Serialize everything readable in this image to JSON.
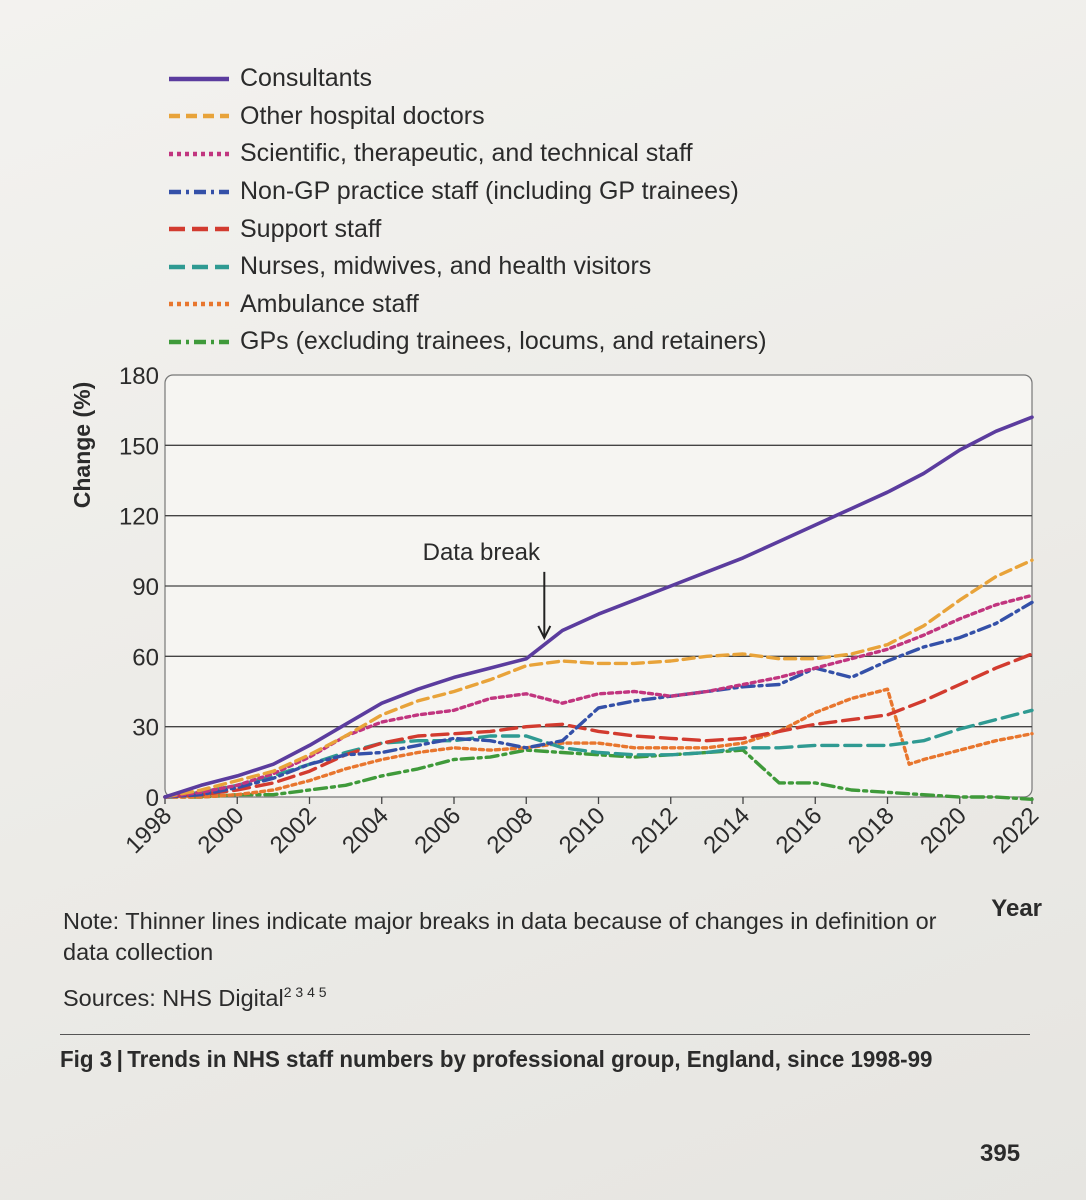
{
  "legend": [
    {
      "label": "Consultants",
      "color": "#5b3c9e",
      "dash": "solid"
    },
    {
      "label": "Other hospital doctors",
      "color": "#e8a33a",
      "dash": "dash"
    },
    {
      "label": "Scientific, therapeutic, and technical staff",
      "color": "#c1357f",
      "dash": "dot"
    },
    {
      "label": "Non-GP practice staff (including GP trainees)",
      "color": "#3450a8",
      "dash": "dashdot"
    },
    {
      "label": "Support staff",
      "color": "#d23b2f",
      "dash": "longdash"
    },
    {
      "label": "Nurses, midwives, and health visitors",
      "color": "#2f9a92",
      "dash": "longdash"
    },
    {
      "label": "Ambulance staff",
      "color": "#e8762e",
      "dash": "dot"
    },
    {
      "label": "GPs (excluding trainees, locums, and retainers)",
      "color": "#3f9a3a",
      "dash": "dashdot"
    }
  ],
  "chart_data": {
    "type": "line",
    "xlabel": "Year",
    "ylabel": "Change (%)",
    "xlim": [
      1998,
      2022
    ],
    "ylim": [
      0,
      180
    ],
    "x_ticks": [
      "1998",
      "2000",
      "2002",
      "2004",
      "2006",
      "2008",
      "2010",
      "2012",
      "2014",
      "2016",
      "2018",
      "2020",
      "2022"
    ],
    "y_ticks": [
      "0",
      "30",
      "60",
      "90",
      "120",
      "150",
      "180"
    ],
    "grid": "horizontal",
    "annotation": {
      "text": "Data break",
      "x": 2008.5,
      "y": 67
    },
    "series": [
      {
        "name": "Consultants",
        "color": "#5b3c9e",
        "dash": "solid",
        "points": [
          [
            1998,
            0
          ],
          [
            1999,
            5
          ],
          [
            2000,
            9
          ],
          [
            2001,
            14
          ],
          [
            2002,
            22
          ],
          [
            2003,
            31
          ],
          [
            2004,
            40
          ],
          [
            2005,
            46
          ],
          [
            2006,
            51
          ],
          [
            2007,
            55
          ],
          [
            2008,
            59
          ],
          [
            2009,
            71
          ],
          [
            2010,
            78
          ],
          [
            2011,
            84
          ],
          [
            2012,
            90
          ],
          [
            2013,
            96
          ],
          [
            2014,
            102
          ],
          [
            2015,
            109
          ],
          [
            2016,
            116
          ],
          [
            2017,
            123
          ],
          [
            2018,
            130
          ],
          [
            2019,
            138
          ],
          [
            2020,
            148
          ],
          [
            2021,
            156
          ],
          [
            2022,
            162
          ]
        ]
      },
      {
        "name": "Other hospital doctors",
        "color": "#e8a33a",
        "dash": "dash",
        "points": [
          [
            1998,
            0
          ],
          [
            1999,
            3
          ],
          [
            2000,
            7
          ],
          [
            2001,
            11
          ],
          [
            2002,
            18
          ],
          [
            2003,
            26
          ],
          [
            2004,
            35
          ],
          [
            2005,
            41
          ],
          [
            2006,
            45
          ],
          [
            2007,
            50
          ],
          [
            2008,
            56
          ],
          [
            2009,
            58
          ],
          [
            2010,
            57
          ],
          [
            2011,
            57
          ],
          [
            2012,
            58
          ],
          [
            2013,
            60
          ],
          [
            2014,
            61
          ],
          [
            2015,
            59
          ],
          [
            2016,
            59
          ],
          [
            2017,
            61
          ],
          [
            2018,
            65
          ],
          [
            2019,
            73
          ],
          [
            2020,
            84
          ],
          [
            2021,
            94
          ],
          [
            2022,
            101
          ]
        ]
      },
      {
        "name": "Scientific, therapeutic, and technical staff",
        "color": "#c1357f",
        "dash": "dot",
        "points": [
          [
            1998,
            0
          ],
          [
            1999,
            2
          ],
          [
            2000,
            5
          ],
          [
            2001,
            10
          ],
          [
            2002,
            17
          ],
          [
            2003,
            26
          ],
          [
            2004,
            32
          ],
          [
            2005,
            35
          ],
          [
            2006,
            37
          ],
          [
            2007,
            42
          ],
          [
            2008,
            44
          ],
          [
            2009,
            40
          ],
          [
            2010,
            44
          ],
          [
            2011,
            45
          ],
          [
            2012,
            43
          ],
          [
            2013,
            45
          ],
          [
            2014,
            48
          ],
          [
            2015,
            51
          ],
          [
            2016,
            55
          ],
          [
            2017,
            59
          ],
          [
            2018,
            63
          ],
          [
            2019,
            69
          ],
          [
            2020,
            76
          ],
          [
            2021,
            82
          ],
          [
            2022,
            86
          ]
        ]
      },
      {
        "name": "Non-GP practice staff (including GP trainees)",
        "color": "#3450a8",
        "dash": "dashdot",
        "points": [
          [
            1998,
            0
          ],
          [
            1999,
            1
          ],
          [
            2000,
            4
          ],
          [
            2001,
            8
          ],
          [
            2002,
            14
          ],
          [
            2003,
            18
          ],
          [
            2004,
            19
          ],
          [
            2005,
            22
          ],
          [
            2006,
            25
          ],
          [
            2007,
            24
          ],
          [
            2008,
            21
          ],
          [
            2009,
            24
          ],
          [
            2010,
            38
          ],
          [
            2011,
            41
          ],
          [
            2012,
            43
          ],
          [
            2013,
            45
          ],
          [
            2014,
            47
          ],
          [
            2015,
            48
          ],
          [
            2016,
            55
          ],
          [
            2017,
            51
          ],
          [
            2018,
            58
          ],
          [
            2019,
            64
          ],
          [
            2020,
            68
          ],
          [
            2021,
            74
          ],
          [
            2022,
            83
          ]
        ]
      },
      {
        "name": "Support staff",
        "color": "#d23b2f",
        "dash": "longdash",
        "points": [
          [
            1998,
            0
          ],
          [
            1999,
            1
          ],
          [
            2000,
            3
          ],
          [
            2001,
            6
          ],
          [
            2002,
            11
          ],
          [
            2003,
            18
          ],
          [
            2004,
            23
          ],
          [
            2005,
            26
          ],
          [
            2006,
            27
          ],
          [
            2007,
            28
          ],
          [
            2008,
            30
          ],
          [
            2009,
            31
          ],
          [
            2010,
            28
          ],
          [
            2011,
            26
          ],
          [
            2012,
            25
          ],
          [
            2013,
            24
          ],
          [
            2014,
            25
          ],
          [
            2015,
            28
          ],
          [
            2016,
            31
          ],
          [
            2017,
            33
          ],
          [
            2018,
            35
          ],
          [
            2019,
            41
          ],
          [
            2020,
            48
          ],
          [
            2021,
            55
          ],
          [
            2022,
            61
          ]
        ]
      },
      {
        "name": "Nurses, midwives, and health visitors",
        "color": "#2f9a92",
        "dash": "longdash",
        "points": [
          [
            1998,
            0
          ],
          [
            1999,
            2
          ],
          [
            2000,
            5
          ],
          [
            2001,
            9
          ],
          [
            2002,
            14
          ],
          [
            2003,
            19
          ],
          [
            2004,
            23
          ],
          [
            2005,
            24
          ],
          [
            2006,
            24
          ],
          [
            2007,
            26
          ],
          [
            2008,
            26
          ],
          [
            2009,
            21
          ],
          [
            2010,
            19
          ],
          [
            2011,
            18
          ],
          [
            2012,
            18
          ],
          [
            2013,
            19
          ],
          [
            2014,
            21
          ],
          [
            2015,
            21
          ],
          [
            2016,
            22
          ],
          [
            2017,
            22
          ],
          [
            2018,
            22
          ],
          [
            2019,
            24
          ],
          [
            2020,
            29
          ],
          [
            2021,
            33
          ],
          [
            2022,
            37
          ]
        ]
      },
      {
        "name": "Ambulance staff",
        "color": "#e8762e",
        "dash": "dot",
        "points": [
          [
            1998,
            0
          ],
          [
            1999,
            0
          ],
          [
            2000,
            1
          ],
          [
            2001,
            3
          ],
          [
            2002,
            7
          ],
          [
            2003,
            12
          ],
          [
            2004,
            16
          ],
          [
            2005,
            19
          ],
          [
            2006,
            21
          ],
          [
            2007,
            20
          ],
          [
            2008,
            21
          ],
          [
            2009,
            23
          ],
          [
            2010,
            23
          ],
          [
            2011,
            21
          ],
          [
            2012,
            21
          ],
          [
            2013,
            21
          ],
          [
            2014,
            23
          ],
          [
            2015,
            28
          ],
          [
            2016,
            36
          ],
          [
            2017,
            42
          ],
          [
            2018,
            46
          ],
          [
            2018.6,
            14
          ],
          [
            2019,
            16
          ],
          [
            2020,
            20
          ],
          [
            2021,
            24
          ],
          [
            2022,
            27
          ]
        ]
      },
      {
        "name": "GPs (excluding trainees, locums, and retainers)",
        "color": "#3f9a3a",
        "dash": "dashdot",
        "points": [
          [
            1998,
            0
          ],
          [
            1999,
            0
          ],
          [
            2000,
            1
          ],
          [
            2001,
            1
          ],
          [
            2002,
            3
          ],
          [
            2003,
            5
          ],
          [
            2004,
            9
          ],
          [
            2005,
            12
          ],
          [
            2006,
            16
          ],
          [
            2007,
            17
          ],
          [
            2008,
            20
          ],
          [
            2009,
            19
          ],
          [
            2010,
            18
          ],
          [
            2011,
            17
          ],
          [
            2012,
            18
          ],
          [
            2013,
            19
          ],
          [
            2014,
            20
          ],
          [
            2015,
            6
          ],
          [
            2016,
            6
          ],
          [
            2017,
            3
          ],
          [
            2018,
            2
          ],
          [
            2019,
            1
          ],
          [
            2020,
            0
          ],
          [
            2021,
            0
          ],
          [
            2022,
            -1
          ]
        ]
      }
    ]
  },
  "note": "Note: Thinner lines indicate major breaks in data because of changes in definition or data collection",
  "sources": {
    "text": "Sources: NHS Digital",
    "refs": "2 3 4 5"
  },
  "caption": "Fig 3 | Trends in NHS staff numbers by professional group, England, since 1998-99",
  "page_number": "395"
}
